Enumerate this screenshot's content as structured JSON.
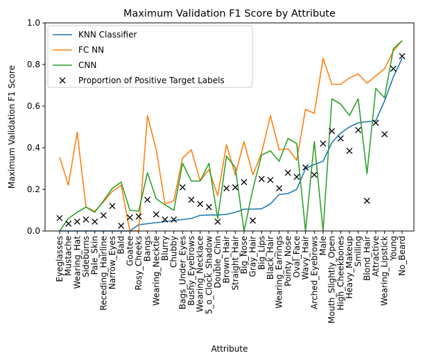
{
  "chart_data": {
    "type": "line",
    "title": "Maximum Validation F1 Score by Attribute",
    "xlabel": "Attribute",
    "ylabel": "Maximum Validation F1 Score",
    "ylim": [
      0,
      1.0
    ],
    "yticks": [
      "0.0",
      "0.2",
      "0.4",
      "0.6",
      "0.8",
      "1.0"
    ],
    "grid": false,
    "legend_position": "upper-left",
    "categories": [
      "Eyeglasses",
      "Mustache",
      "Wearing_Hat",
      "Sideburns",
      "Pale_Skin",
      "Receding_Hairline",
      "Narrow_Eyes",
      "Bald",
      "Goatee",
      "Rosy_Cheeks",
      "Bangs",
      "Wearing_Necktie",
      "Blurry",
      "Chubby",
      "Bags_Under_Eyes",
      "Bushy_Eyebrows",
      "Wearing_Necklace",
      "5_o_Clock_Shadow",
      "Double_Chin",
      "Brown_Hair",
      "Straight_Hair",
      "Big_Nose",
      "Gray_Hair",
      "Big_Lips",
      "Black_Hair",
      "Wearing_Earrings",
      "Pointy_Nose",
      "Oval_Face",
      "Wavy_Hair",
      "Arched_Eyebrows",
      "Male",
      "Mouth_Slightly_Open",
      "High_Cheekbones",
      "Heavy_Makeup",
      "Smiling",
      "Blond_Hair",
      "Attractive",
      "Wearing_Lipstick",
      "Young",
      "No_Beard"
    ],
    "series": [
      {
        "name": "KNN Classifier",
        "kind": "line",
        "color": "#1f77b4",
        "values": [
          0.0,
          0.0,
          0.0,
          0.0,
          0.0,
          0.0,
          0.0,
          0.0,
          0.0,
          0.03,
          0.035,
          0.04,
          0.045,
          0.05,
          0.055,
          0.06,
          0.075,
          0.077,
          0.077,
          0.08,
          0.09,
          0.105,
          0.105,
          0.107,
          0.13,
          0.175,
          0.18,
          0.2,
          0.3,
          0.32,
          0.335,
          0.425,
          0.47,
          0.5,
          0.52,
          0.525,
          0.53,
          0.625,
          0.74,
          0.83
        ]
      },
      {
        "name": "FC NN",
        "kind": "line",
        "color": "#ff7f0e",
        "values": [
          0.355,
          0.22,
          0.475,
          0.115,
          0.095,
          0.14,
          0.19,
          0.22,
          0.0,
          0.0,
          0.555,
          0.39,
          0.13,
          0.145,
          0.35,
          0.39,
          0.24,
          0.295,
          0.17,
          0.415,
          0.27,
          0.43,
          0.27,
          0.375,
          0.555,
          0.39,
          0.395,
          0.34,
          0.585,
          0.565,
          0.83,
          0.705,
          0.705,
          0.735,
          0.755,
          0.71,
          0.745,
          0.78,
          0.865,
          0.915
        ]
      },
      {
        "name": "CNN",
        "kind": "line",
        "color": "#2ca02c",
        "values": [
          0.0,
          0.06,
          0.09,
          0.115,
          0.09,
          0.145,
          0.205,
          0.235,
          0.1,
          0.095,
          0.28,
          0.155,
          0.125,
          0.1,
          0.325,
          0.24,
          0.24,
          0.325,
          0.06,
          0.36,
          0.305,
          0.0,
          0.2,
          0.365,
          0.385,
          0.335,
          0.445,
          0.42,
          0.0,
          0.43,
          0.0,
          0.635,
          0.61,
          0.555,
          0.635,
          0.275,
          0.685,
          0.64,
          0.875,
          0.915
        ]
      },
      {
        "name": "Proportion of Positive Target Labels",
        "kind": "marker",
        "color": "#000000",
        "values": [
          0.062,
          0.035,
          0.045,
          0.055,
          0.045,
          0.075,
          0.12,
          0.025,
          0.065,
          0.07,
          0.15,
          0.08,
          0.055,
          0.055,
          0.21,
          0.15,
          0.13,
          0.115,
          0.045,
          0.205,
          0.21,
          0.235,
          0.05,
          0.25,
          0.245,
          0.205,
          0.28,
          0.26,
          0.305,
          0.27,
          0.42,
          0.48,
          0.445,
          0.385,
          0.485,
          0.145,
          0.52,
          0.465,
          0.78,
          0.84
        ]
      }
    ]
  }
}
